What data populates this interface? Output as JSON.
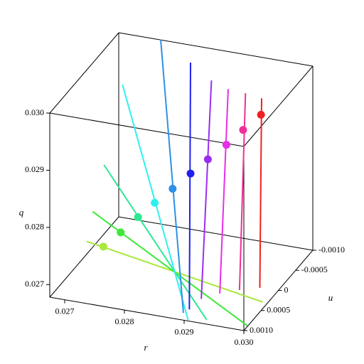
{
  "chart_data": {
    "type": "line3d",
    "xlabel": "r",
    "ylabel": "q",
    "zlabel": "u",
    "rlim": [
      0.02675,
      0.03
    ],
    "qlim": [
      0.02678,
      0.03
    ],
    "ulim": [
      0.001,
      -0.001
    ],
    "rticks": [
      0.027,
      0.028,
      0.029,
      {
        "value": 0.03,
        "label": "0.030"
      }
    ],
    "qticks": [
      0.027,
      0.028,
      0.029,
      {
        "value": 0.03,
        "label": "0.030"
      }
    ],
    "uticks": [
      {
        "value": -0.001,
        "label": "-0.0010"
      },
      {
        "value": -0.0005,
        "label": "-0.0005"
      },
      0,
      {
        "value": 0.0005,
        "label": "0.0005"
      },
      {
        "value": 0.001,
        "label": "0.0010"
      }
    ],
    "series": [
      {
        "color": "#a8e83a",
        "line": {
          "r": [
            0.02679,
            0.02974
          ],
          "q": [
            0.02706,
            0.02653
          ],
          "u": [
            0,
            0
          ]
        },
        "point": {
          "r": 0.02707,
          "q": 0.02702,
          "u": 0
        }
      },
      {
        "color": "#3ee83a",
        "line": {
          "r": [
            0.02689,
            0.02948
          ],
          "q": [
            0.0276,
            0.02607
          ],
          "u": [
            0,
            0
          ]
        },
        "point": {
          "r": 0.02736,
          "q": 0.02732,
          "u": 0
        }
      },
      {
        "color": "#2ee890",
        "line": {
          "r": [
            0.02708,
            0.0288
          ],
          "q": [
            0.02845,
            0.02605
          ],
          "u": [
            0,
            0
          ]
        },
        "point": {
          "r": 0.02765,
          "q": 0.02764,
          "u": 0
        }
      },
      {
        "color": "#2ef0f0",
        "line": {
          "r": [
            0.02739,
            0.02849
          ],
          "q": [
            0.02991,
            0.02599
          ],
          "u": [
            0,
            0
          ]
        },
        "point": {
          "r": 0.02793,
          "q": 0.02794,
          "u": 0
        }
      },
      {
        "color": "#2e90e8",
        "line": {
          "r": [
            0.02803,
            0.02841
          ],
          "q": [
            0.03081,
            0.0261
          ],
          "u": [
            0,
            0
          ]
        },
        "point": {
          "r": 0.02823,
          "q": 0.02824,
          "u": 0
        }
      },
      {
        "color": "#2020f0",
        "line": {
          "r": [
            0.02853,
            0.02851
          ],
          "q": [
            0.0305,
            0.02618
          ],
          "u": [
            0,
            0
          ]
        },
        "point": {
          "r": 0.02853,
          "q": 0.02856,
          "u": 0
        }
      },
      {
        "color": "#9a2ef0",
        "line": {
          "r": [
            0.02888,
            0.02871
          ],
          "q": [
            0.03025,
            0.0264
          ],
          "u": [
            0,
            0
          ]
        },
        "point": {
          "r": 0.02882,
          "q": 0.02886,
          "u": 0
        }
      },
      {
        "color": "#e82ee8",
        "line": {
          "r": [
            0.02916,
            0.02902
          ],
          "q": [
            0.03015,
            0.02655
          ],
          "u": [
            0,
            0
          ]
        },
        "point": {
          "r": 0.02913,
          "q": 0.02917,
          "u": 0
        }
      },
      {
        "color": "#f02e9a",
        "line": {
          "r": [
            0.02945,
            0.02935
          ],
          "q": [
            0.03013,
            0.02667
          ],
          "u": [
            0,
            0
          ]
        },
        "point": {
          "r": 0.02941,
          "q": 0.02948,
          "u": 0
        }
      },
      {
        "color": "#f02020",
        "line": {
          "r": [
            0.02972,
            0.02969
          ],
          "q": [
            0.03009,
            0.02677
          ],
          "u": [
            0,
            0
          ]
        },
        "point": {
          "r": 0.02971,
          "q": 0.0298,
          "u": 0
        }
      }
    ]
  }
}
